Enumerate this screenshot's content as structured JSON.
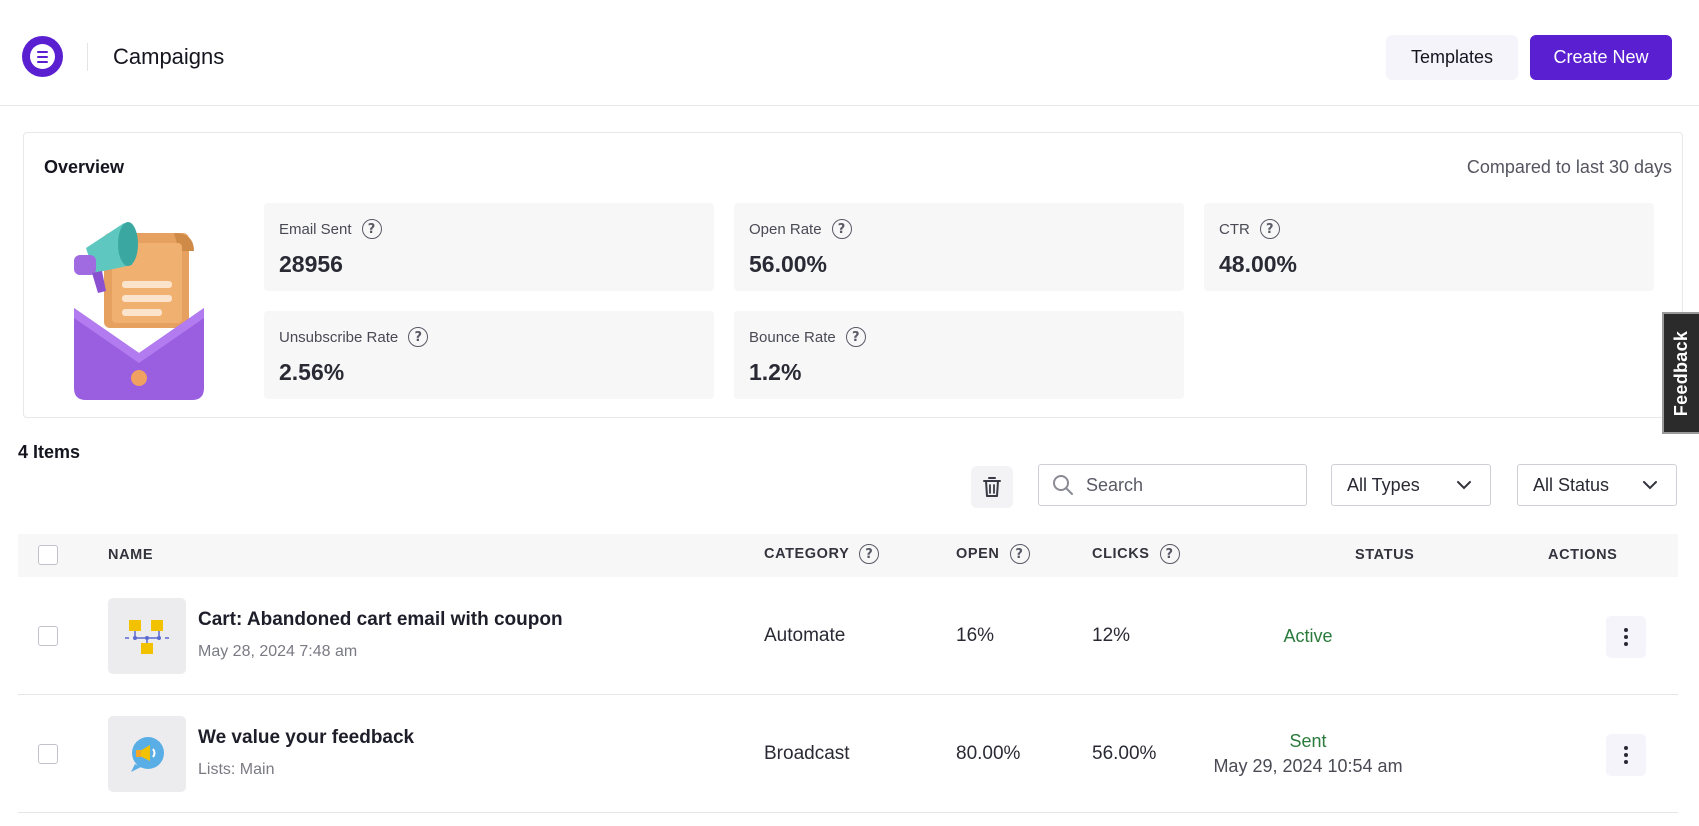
{
  "header": {
    "title": "Campaigns",
    "templates_label": "Templates",
    "create_label": "Create New",
    "brand_color": "#5a1fd1"
  },
  "overview": {
    "title": "Overview",
    "compare_text": "Compared to last 30 days",
    "stats": [
      {
        "label": "Email Sent",
        "value": "28956"
      },
      {
        "label": "Open Rate",
        "value": "56.00%"
      },
      {
        "label": "CTR",
        "value": "48.00%"
      },
      {
        "label": "Unsubscribe Rate",
        "value": "2.56%"
      },
      {
        "label": "Bounce Rate",
        "value": "1.2%"
      }
    ]
  },
  "feedback_label": "Feedback",
  "toolbar": {
    "items_count": "4 Items",
    "search_placeholder": "Search",
    "type_filter": "All Types",
    "status_filter": "All Status"
  },
  "table": {
    "headers": {
      "name": "NAME",
      "category": "CATEGORY",
      "open": "OPEN",
      "clicks": "CLICKS",
      "status": "STATUS",
      "actions": "ACTIONS"
    },
    "rows": [
      {
        "title": "Cart: Abandoned cart email with coupon",
        "subtitle": "May 28, 2024 7:48 am",
        "category": "Automate",
        "open": "16%",
        "clicks": "12%",
        "status": "Active",
        "status_date": "",
        "icon": "automation-flow-icon"
      },
      {
        "title": "We value your feedback",
        "subtitle": "Lists: Main",
        "category": "Broadcast",
        "open": "80.00%",
        "clicks": "56.00%",
        "status": "Sent",
        "status_date": "May 29, 2024 10:54 am",
        "icon": "megaphone-bubble-icon"
      }
    ]
  },
  "colors": {
    "status_green": "#2a7a3c",
    "accent_purple": "#5a1fd1"
  }
}
